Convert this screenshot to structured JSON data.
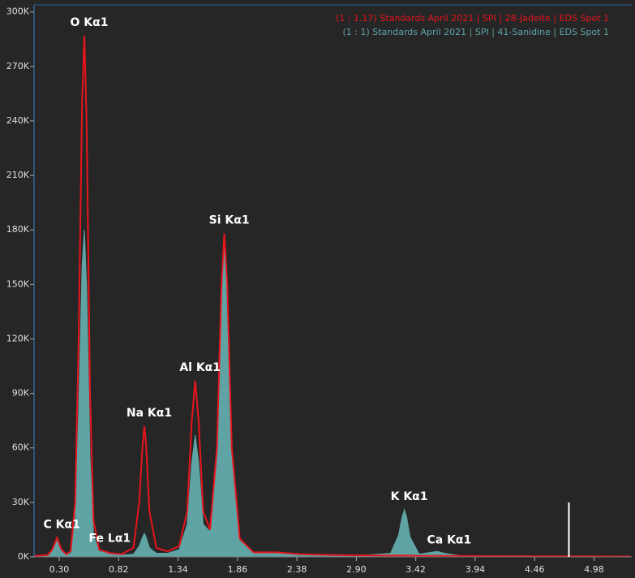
{
  "chart_data": {
    "type": "line",
    "xlim": [
      0.08,
      5.31
    ],
    "ylim": [
      0,
      303000
    ],
    "xticks": [
      {
        "value": 0.3,
        "label": "0.30"
      },
      {
        "value": 0.82,
        "label": "0.82"
      },
      {
        "value": 1.34,
        "label": "1.34"
      },
      {
        "value": 1.86,
        "label": "1.86"
      },
      {
        "value": 2.38,
        "label": "2.38"
      },
      {
        "value": 2.9,
        "label": "2.90"
      },
      {
        "value": 3.42,
        "label": "3.42"
      },
      {
        "value": 3.94,
        "label": "3.94"
      },
      {
        "value": 4.46,
        "label": "4.46"
      },
      {
        "value": 4.98,
        "label": "4.98"
      }
    ],
    "yticks": [
      {
        "value": 0,
        "label": "0K"
      },
      {
        "value": 30000,
        "label": "30K"
      },
      {
        "value": 60000,
        "label": "60K"
      },
      {
        "value": 90000,
        "label": "90K"
      },
      {
        "value": 120000,
        "label": "120K"
      },
      {
        "value": 150000,
        "label": "150K"
      },
      {
        "value": 180000,
        "label": "180K"
      },
      {
        "value": 210000,
        "label": "210K"
      },
      {
        "value": 240000,
        "label": "240K"
      },
      {
        "value": 270000,
        "label": "270K"
      },
      {
        "value": 300000,
        "label": "300K"
      }
    ],
    "legend": "top-right",
    "x": [
      0.08,
      0.2,
      0.24,
      0.28,
      0.32,
      0.36,
      0.4,
      0.44,
      0.47,
      0.5,
      0.52,
      0.54,
      0.57,
      0.6,
      0.65,
      0.7,
      0.75,
      0.85,
      0.95,
      1.0,
      1.03,
      1.045,
      1.06,
      1.09,
      1.15,
      1.25,
      1.35,
      1.42,
      1.46,
      1.49,
      1.52,
      1.56,
      1.62,
      1.68,
      1.72,
      1.745,
      1.77,
      1.81,
      1.88,
      2.0,
      2.2,
      2.4,
      2.7,
      3.0,
      3.2,
      3.27,
      3.3,
      3.32,
      3.34,
      3.37,
      3.45,
      3.55,
      3.61,
      3.67,
      3.8,
      4.2,
      4.8,
      5.3
    ],
    "series": [
      {
        "name": "(1 : 1) Standards April 2021 | SPI | 41-Sanidine | EDS Spot 1",
        "color": "#5fa3a5",
        "style": "area",
        "values": [
          300,
          800,
          3000,
          9000,
          3000,
          1000,
          2000,
          20000,
          80000,
          160000,
          180000,
          150000,
          55000,
          12000,
          3000,
          2500,
          1500,
          1000,
          1500,
          6000,
          11000,
          13000,
          11000,
          5000,
          2000,
          2000,
          4000,
          18000,
          52000,
          67000,
          52000,
          18000,
          14000,
          58000,
          148000,
          176000,
          148000,
          58000,
          9000,
          2000,
          2500,
          1500,
          1200,
          1000,
          2000,
          12000,
          22000,
          26000,
          22000,
          11000,
          1500,
          2500,
          3000,
          2000,
          700,
          500,
          400,
          300
        ]
      },
      {
        "name": "(1 : 1.17) Standards April 2021 | SPI | 28-Jadeite | EDS Spot 1",
        "color": "#e8141c",
        "style": "line",
        "values": [
          500,
          1000,
          4000,
          10500,
          4000,
          1500,
          3000,
          30000,
          120000,
          250000,
          287000,
          240000,
          90000,
          20000,
          4000,
          3000,
          2000,
          1500,
          5000,
          30000,
          62000,
          72000,
          62000,
          25000,
          5000,
          3000,
          6000,
          25000,
          75000,
          97000,
          75000,
          25000,
          15000,
          60000,
          150000,
          178000,
          150000,
          60000,
          10000,
          2500,
          2500,
          1500,
          1000,
          800,
          700,
          700,
          700,
          700,
          700,
          700,
          600,
          600,
          600,
          500,
          500,
          400,
          300,
          200
        ]
      }
    ],
    "annotations": [
      {
        "text": "C  Kα1",
        "x": 0.28
      },
      {
        "text": "O  Kα1",
        "x": 0.52
      },
      {
        "text": "Fe Lα1",
        "x": 0.7
      },
      {
        "text": "Na Kα1",
        "x": 1.045
      },
      {
        "text": "Al Kα1",
        "x": 1.49
      },
      {
        "text": "Si Kα1",
        "x": 1.745
      },
      {
        "text": "K  Kα1",
        "x": 3.32
      },
      {
        "text": "Ca Kα1",
        "x": 3.67
      }
    ],
    "cursor": {
      "x": 4.76,
      "y": 30000
    }
  }
}
